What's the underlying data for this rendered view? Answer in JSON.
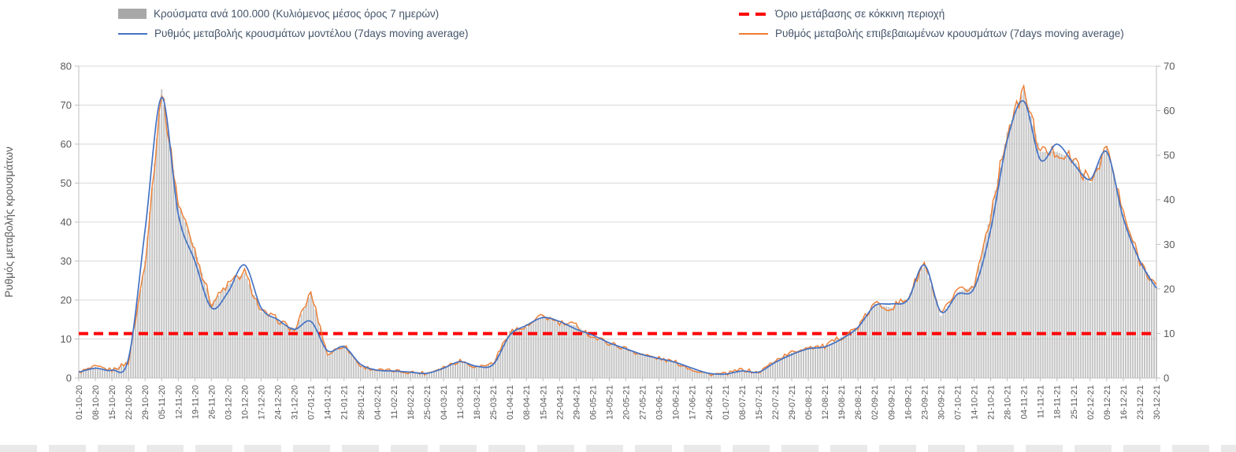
{
  "chart_data": {
    "type": "combo-bar-line",
    "legend_position": "top",
    "grid": true,
    "left_axis": {
      "title": "Ρυθμός μεταβολής κρουσμάτων",
      "min": 0,
      "max": 80,
      "step": 10
    },
    "right_axis": {
      "min": 0,
      "max": 70,
      "step": 10
    },
    "x_weekly_labels": [
      "01-10-20",
      "08-10-20",
      "15-10-20",
      "22-10-20",
      "29-10-20",
      "05-11-20",
      "12-11-20",
      "19-11-20",
      "26-11-20",
      "03-12-20",
      "10-12-20",
      "17-12-20",
      "24-12-20",
      "31-12-20",
      "07-01-21",
      "14-01-21",
      "21-01-21",
      "28-01-21",
      "04-02-21",
      "11-02-21",
      "18-02-21",
      "25-02-21",
      "04-03-21",
      "11-03-21",
      "18-03-21",
      "25-03-21",
      "01-04-21",
      "08-04-21",
      "15-04-21",
      "22-04-21",
      "29-04-21",
      "06-05-21",
      "13-05-21",
      "20-05-21",
      "27-05-21",
      "03-06-21",
      "10-06-21",
      "17-06-21",
      "24-06-21",
      "01-07-21",
      "08-07-21",
      "15-07-21",
      "22-07-21",
      "29-07-21",
      "05-08-21",
      "12-08-21",
      "19-08-21",
      "26-08-21",
      "02-09-21",
      "09-09-21",
      "16-09-21",
      "23-09-21",
      "30-09-21",
      "07-10-21",
      "14-10-21",
      "21-10-21",
      "28-10-21",
      "04-11-21",
      "11-11-21",
      "18-11-21",
      "25-11-21",
      "02-12-21",
      "09-12-21",
      "16-12-21",
      "23-12-21",
      "30-12-21"
    ],
    "series": [
      {
        "name": "Κρούσματα ανά 100.000 (Κυλιόμενος μέσος όρος 7 ημερών)",
        "type": "bar",
        "axis": "right",
        "color": "#c4c4c4",
        "values": [
          1.3,
          2.5,
          1.8,
          3.5,
          26.3,
          64.8,
          39.4,
          28.9,
          16.6,
          21,
          23.6,
          14.9,
          13.1,
          10.5,
          19.3,
          5.3,
          7.4,
          2.6,
          1.8,
          1.6,
          1.3,
          1.1,
          2.5,
          3.9,
          2.5,
          3.3,
          10.5,
          11.4,
          14,
          12.3,
          11.8,
          9.2,
          7.9,
          6.6,
          5.3,
          4.4,
          3.5,
          1.9,
          0.9,
          0.9,
          1.9,
          1.1,
          3.9,
          5.7,
          7,
          7,
          9.2,
          11.4,
          16.6,
          15.8,
          17.9,
          25.8,
          14,
          19.3,
          20.6,
          36.8,
          55.1,
          64.8,
          50.8,
          50.8,
          49,
          43.8,
          52.1,
          36.8,
          26.3,
          20.6
        ]
      },
      {
        "name": "Ρυθμός μεταβολής κρουσμάτων μοντέλου (7days moving average)",
        "type": "line",
        "axis": "left",
        "color": "#4472c4",
        "values": [
          1.5,
          2.5,
          2,
          5,
          38,
          72,
          42,
          30,
          18,
          22,
          29,
          18,
          15,
          12.5,
          14.5,
          7,
          8,
          3.5,
          2,
          1.8,
          1.5,
          1.2,
          2.5,
          4.2,
          3,
          3.5,
          11,
          13.5,
          15.5,
          14.5,
          12.5,
          11,
          9,
          7.5,
          6,
          5,
          4,
          2.5,
          1.2,
          1,
          1.8,
          1.5,
          4,
          6,
          7.5,
          8,
          10,
          13,
          18.5,
          19,
          20,
          29,
          17,
          21.5,
          23,
          38,
          61,
          71,
          56,
          60,
          55,
          51,
          58,
          41,
          30,
          23
        ]
      },
      {
        "name": "Ρυθμός μεταβολής επιβεβαιωμένων κρουσμάτων (7days moving average)",
        "type": "line",
        "axis": "left",
        "color": "#ed7d31",
        "values": [
          1.5,
          2.8,
          2,
          4,
          30,
          74,
          45,
          33,
          19,
          24,
          27,
          17,
          15,
          12,
          22,
          6,
          8.5,
          3,
          2,
          1.8,
          1.5,
          1.2,
          2.8,
          4.5,
          2.8,
          3.8,
          12,
          13,
          16,
          14,
          13.5,
          10.5,
          9,
          7.5,
          6,
          5,
          4,
          2.2,
          1,
          1,
          2.2,
          1.3,
          4.5,
          6.5,
          8,
          8,
          10.5,
          13,
          19,
          18,
          20.5,
          29.5,
          16,
          22,
          23.5,
          42,
          63,
          74,
          58,
          58,
          56,
          50,
          59.5,
          42,
          30,
          23.5
        ]
      },
      {
        "name": "Όριο μετάβασης σε κόκκινη περιοχή",
        "type": "threshold-line",
        "axis": "left",
        "color": "#ff0000",
        "value": 11.4
      }
    ]
  }
}
